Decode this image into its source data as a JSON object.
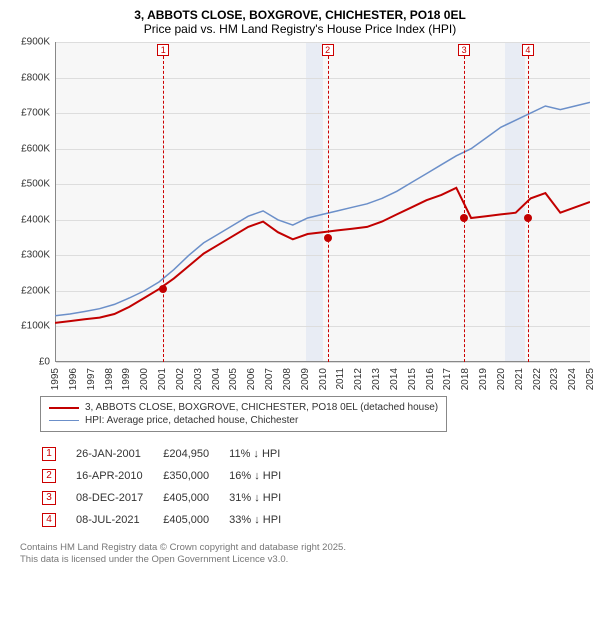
{
  "title": "3, ABBOTS CLOSE, BOXGROVE, CHICHESTER, PO18 0EL",
  "subtitle": "Price paid vs. HM Land Registry's House Price Index (HPI)",
  "chart": {
    "type": "line",
    "background_color": "#f7f7f7",
    "grid_color": "#dddddd",
    "ylim": [
      0,
      900000
    ],
    "ytick_step": 100000,
    "yticks": [
      "£0",
      "£100K",
      "£200K",
      "£300K",
      "£400K",
      "£500K",
      "£600K",
      "£700K",
      "£800K",
      "£900K"
    ],
    "x_start_year": 1995,
    "x_end_year": 2025,
    "xticks": [
      "1995",
      "1996",
      "1997",
      "1998",
      "1999",
      "2000",
      "2001",
      "2002",
      "2003",
      "2004",
      "2005",
      "2006",
      "2007",
      "2008",
      "2009",
      "2010",
      "2011",
      "2012",
      "2013",
      "2014",
      "2015",
      "2016",
      "2017",
      "2018",
      "2019",
      "2020",
      "2021",
      "2022",
      "2023",
      "2024",
      "2025"
    ],
    "series": [
      {
        "name": "3, ABBOTS CLOSE, BOXGROVE, CHICHESTER, PO18 0EL (detached house)",
        "color": "#c20000",
        "line_width": 2,
        "points_y_kgbp": [
          110,
          115,
          120,
          125,
          135,
          155,
          180,
          205,
          235,
          270,
          305,
          330,
          355,
          380,
          395,
          365,
          345,
          360,
          365,
          370,
          375,
          380,
          395,
          415,
          435,
          455,
          470,
          490,
          405,
          410,
          415,
          420,
          460,
          475,
          420,
          435,
          450
        ]
      },
      {
        "name": "HPI: Average price, detached house, Chichester",
        "color": "#6b8fc9",
        "line_width": 1.5,
        "points_y_kgbp": [
          130,
          135,
          142,
          150,
          162,
          180,
          200,
          225,
          260,
          300,
          335,
          360,
          385,
          410,
          425,
          400,
          385,
          405,
          415,
          425,
          435,
          445,
          460,
          480,
          505,
          530,
          555,
          580,
          600,
          630,
          660,
          680,
          700,
          720,
          710,
          720,
          730
        ]
      }
    ],
    "blue_zones_years": [
      [
        2009.0,
        2010.0
      ],
      [
        2020.2,
        2021.3
      ]
    ],
    "markers": [
      {
        "num": "1",
        "year": 2001.07,
        "value_k": 204.95
      },
      {
        "num": "2",
        "year": 2010.29,
        "value_k": 350
      },
      {
        "num": "3",
        "year": 2017.94,
        "value_k": 405
      },
      {
        "num": "4",
        "year": 2021.52,
        "value_k": 405
      }
    ]
  },
  "legend": {
    "items": [
      {
        "label": "3, ABBOTS CLOSE, BOXGROVE, CHICHESTER, PO18 0EL (detached house)",
        "color": "#c20000",
        "width": 2
      },
      {
        "label": "HPI: Average price, detached house, Chichester",
        "color": "#6b8fc9",
        "width": 1.5
      }
    ]
  },
  "sales": [
    {
      "num": "1",
      "date": "26-JAN-2001",
      "price": "£204,950",
      "delta": "11% ↓ HPI"
    },
    {
      "num": "2",
      "date": "16-APR-2010",
      "price": "£350,000",
      "delta": "16% ↓ HPI"
    },
    {
      "num": "3",
      "date": "08-DEC-2017",
      "price": "£405,000",
      "delta": "31% ↓ HPI"
    },
    {
      "num": "4",
      "date": "08-JUL-2021",
      "price": "£405,000",
      "delta": "33% ↓ HPI"
    }
  ],
  "footer": {
    "line1": "Contains HM Land Registry data © Crown copyright and database right 2025.",
    "line2": "This data is licensed under the Open Government Licence v3.0."
  }
}
